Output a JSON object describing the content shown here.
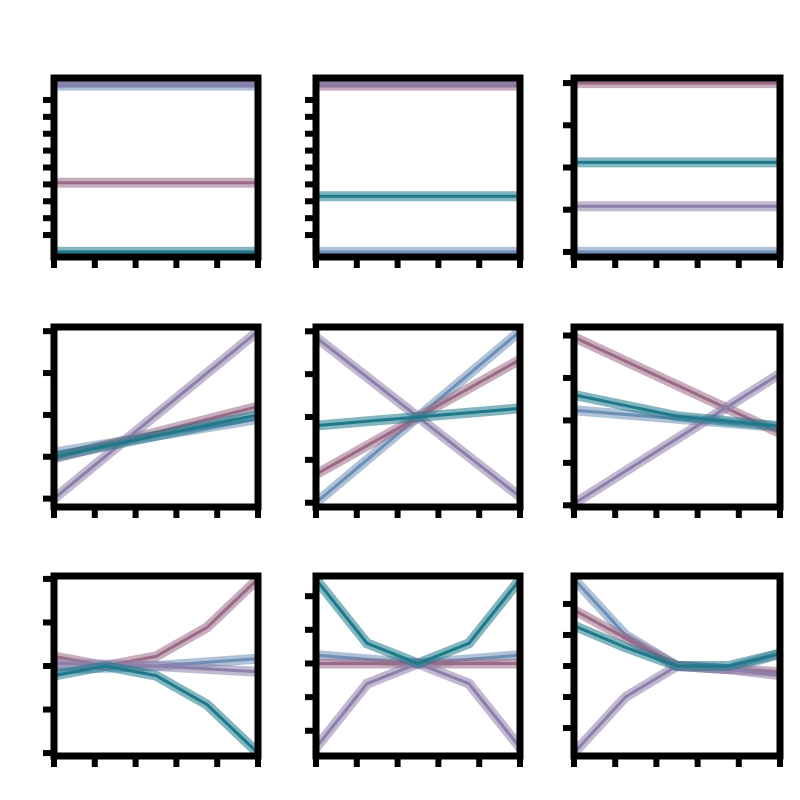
{
  "figure": {
    "suptitle": ""
  },
  "chart_data": [
    {
      "type": "line",
      "panel": "r0c0",
      "title": "",
      "series": [
        {
          "color": "#6D8FB6",
          "x": [
            0,
            1
          ],
          "y": [
            0.985,
            0.985
          ]
        },
        {
          "color": "#9A6A86",
          "x": [
            0,
            1
          ],
          "y": [
            0.41,
            0.41
          ]
        },
        {
          "color": "#8D7FAA",
          "x": [
            0,
            1
          ],
          "y": [
            1.0,
            1.0
          ]
        },
        {
          "color": "#1E7A8A",
          "x": [
            0,
            1
          ],
          "y": [
            0.0,
            0.0
          ]
        }
      ],
      "xlim": [
        0,
        1
      ],
      "ylim": [
        -0.03,
        1.03
      ],
      "xticks": [
        0,
        0.2,
        0.4,
        0.6,
        0.8,
        1.0
      ],
      "yticks": [
        0.1,
        0.2,
        0.3,
        0.4,
        0.5,
        0.6,
        0.7,
        0.8,
        0.9
      ],
      "grid": false
    },
    {
      "type": "line",
      "panel": "r0c1",
      "title": "",
      "series": [
        {
          "color": "#6D8FB6",
          "x": [
            0,
            1
          ],
          "y": [
            0.0,
            0.0
          ]
        },
        {
          "color": "#9A6A86",
          "x": [
            0,
            1
          ],
          "y": [
            0.985,
            0.985
          ]
        },
        {
          "color": "#8D7FAA",
          "x": [
            0,
            1
          ],
          "y": [
            1.0,
            1.0
          ]
        },
        {
          "color": "#1E7A8A",
          "x": [
            0,
            1
          ],
          "y": [
            0.33,
            0.33
          ]
        }
      ],
      "xlim": [
        0,
        1
      ],
      "ylim": [
        -0.03,
        1.03
      ],
      "xticks": [
        0,
        0.2,
        0.4,
        0.6,
        0.8,
        1.0
      ],
      "yticks": [
        0.1,
        0.2,
        0.3,
        0.4,
        0.5,
        0.6,
        0.7,
        0.8,
        0.9
      ],
      "grid": false
    },
    {
      "type": "line",
      "panel": "r0c2",
      "title": "",
      "series": [
        {
          "color": "#6D8FB6",
          "x": [
            0,
            1
          ],
          "y": [
            0.0,
            0.0
          ]
        },
        {
          "color": "#9A6A86",
          "x": [
            0,
            1
          ],
          "y": [
            1.0,
            1.0
          ]
        },
        {
          "color": "#8D7FAA",
          "x": [
            0,
            1
          ],
          "y": [
            0.27,
            0.27
          ]
        },
        {
          "color": "#1E7A8A",
          "x": [
            0,
            1
          ],
          "y": [
            0.53,
            0.53
          ]
        }
      ],
      "xlim": [
        0,
        1
      ],
      "ylim": [
        -0.03,
        1.03
      ],
      "xticks": [
        0,
        0.2,
        0.4,
        0.6,
        0.8,
        1.0
      ],
      "yticks": [
        0,
        0.25,
        0.5,
        0.75,
        1.0
      ],
      "grid": false
    },
    {
      "type": "line",
      "panel": "r1c0",
      "title": "",
      "series": [
        {
          "color": "#6D8FB6",
          "x": [
            0,
            1
          ],
          "y": [
            0.55,
            0.95
          ]
        },
        {
          "color": "#9A6A86",
          "x": [
            0,
            1
          ],
          "y": [
            0.48,
            1.1
          ]
        },
        {
          "color": "#8D7FAA",
          "x": [
            0,
            1
          ],
          "y": [
            0.0,
            2.0
          ]
        },
        {
          "color": "#1E7A8A",
          "x": [
            0,
            0.5,
            1
          ],
          "y": [
            0.5,
            0.75,
            1.0
          ]
        }
      ],
      "xlim": [
        0,
        1
      ],
      "ylim": [
        -0.1,
        2.05
      ],
      "xticks": [
        0,
        0.2,
        0.4,
        0.6,
        0.8,
        1.0
      ],
      "yticks": [
        0,
        0.5,
        1.0,
        1.5,
        2.0
      ],
      "grid": false
    },
    {
      "type": "line",
      "panel": "r1c1",
      "title": "",
      "series": [
        {
          "color": "#6D8FB6",
          "x": [
            0,
            1
          ],
          "y": [
            -1.0,
            1.0
          ]
        },
        {
          "color": "#9A6A86",
          "x": [
            0,
            1
          ],
          "y": [
            -0.67,
            0.67
          ]
        },
        {
          "color": "#8D7FAA",
          "x": [
            0,
            1
          ],
          "y": [
            0.93,
            -0.93
          ]
        },
        {
          "color": "#1E7A8A",
          "x": [
            0,
            0.5,
            1
          ],
          "y": [
            -0.1,
            0.0,
            0.1
          ]
        }
      ],
      "xlim": [
        0,
        1
      ],
      "ylim": [
        -1.05,
        1.05
      ],
      "xticks": [
        0,
        0.2,
        0.4,
        0.6,
        0.8,
        1.0
      ],
      "yticks": [
        -1.0,
        -0.5,
        0,
        0.5,
        1.0
      ],
      "grid": false
    },
    {
      "type": "line",
      "panel": "r1c2",
      "title": "",
      "series": [
        {
          "color": "#6D8FB6",
          "x": [
            0,
            1
          ],
          "y": [
            0.12,
            -0.08
          ]
        },
        {
          "color": "#9A6A86",
          "x": [
            0,
            1
          ],
          "y": [
            0.98,
            -0.15
          ]
        },
        {
          "color": "#8D7FAA",
          "x": [
            0,
            1
          ],
          "y": [
            -0.98,
            0.55
          ]
        },
        {
          "color": "#1E7A8A",
          "x": [
            0,
            0.5,
            1
          ],
          "y": [
            0.3,
            0.05,
            -0.07
          ]
        }
      ],
      "xlim": [
        0,
        1
      ],
      "ylim": [
        -1.02,
        1.1
      ],
      "xticks": [
        0,
        0.2,
        0.4,
        0.6,
        0.8,
        1.0
      ],
      "yticks": [
        -1.0,
        -0.5,
        0,
        0.5,
        1.0
      ],
      "grid": false
    },
    {
      "type": "line",
      "panel": "r2c0",
      "title": "",
      "series": [
        {
          "color": "#6D8FB6",
          "x": [
            0,
            0.5,
            1
          ],
          "y": [
            -0.12,
            0.0,
            0.25
          ]
        },
        {
          "color": "#9A6A86",
          "x": [
            0,
            0.25,
            0.5,
            0.75,
            1
          ],
          "y": [
            0.33,
            0.0,
            0.33,
            1.33,
            3.0
          ]
        },
        {
          "color": "#8D7FAA",
          "x": [
            0,
            0.5,
            1
          ],
          "y": [
            0.1,
            0.0,
            -0.2
          ]
        },
        {
          "color": "#1E7A8A",
          "x": [
            0,
            0.25,
            0.5,
            0.75,
            1
          ],
          "y": [
            -0.33,
            0.0,
            -0.33,
            -1.33,
            -3.0
          ]
        }
      ],
      "xlim": [
        0,
        1
      ],
      "ylim": [
        -3.1,
        3.1
      ],
      "xticks": [
        0,
        0.2,
        0.4,
        0.6,
        0.8,
        1.0
      ],
      "yticks": [
        -3,
        -1.5,
        0,
        1.5,
        3
      ],
      "grid": false
    },
    {
      "type": "line",
      "panel": "r2c1",
      "title": "",
      "series": [
        {
          "color": "#6D8FB6",
          "x": [
            0,
            0.5,
            1
          ],
          "y": [
            0.05,
            0.0,
            0.05
          ]
        },
        {
          "color": "#9A6A86",
          "x": [
            0,
            1
          ],
          "y": [
            0.0,
            0.0
          ]
        },
        {
          "color": "#8D7FAA",
          "x": [
            0,
            0.25,
            0.5,
            0.75,
            1
          ],
          "y": [
            -0.5,
            -0.12,
            0.0,
            -0.12,
            -0.5
          ]
        },
        {
          "color": "#1E7A8A",
          "x": [
            0,
            0.25,
            0.5,
            0.75,
            1
          ],
          "y": [
            0.5,
            0.12,
            0.0,
            0.12,
            0.5
          ]
        }
      ],
      "xlim": [
        0,
        1
      ],
      "ylim": [
        -0.55,
        0.52
      ],
      "xticks": [
        0,
        0.2,
        0.4,
        0.6,
        0.8,
        1.0
      ],
      "yticks": [
        -0.4,
        -0.2,
        0,
        0.2,
        0.4
      ],
      "grid": false
    },
    {
      "type": "line",
      "panel": "r2c2",
      "title": "",
      "series": [
        {
          "color": "#6D8FB6",
          "x": [
            0,
            0.25,
            0.5,
            0.75,
            1
          ],
          "y": [
            1.4,
            0.5,
            0.0,
            -0.05,
            0.2
          ]
        },
        {
          "color": "#9A6A86",
          "x": [
            0,
            0.5,
            1
          ],
          "y": [
            0.9,
            0.0,
            -0.1
          ]
        },
        {
          "color": "#8D7FAA",
          "x": [
            0,
            0.25,
            0.5,
            0.75,
            1
          ],
          "y": [
            -1.4,
            -0.5,
            0.0,
            -0.05,
            -0.15
          ]
        },
        {
          "color": "#1E7A8A",
          "x": [
            0,
            0.25,
            0.5,
            0.75,
            1
          ],
          "y": [
            0.65,
            0.3,
            0.0,
            0.0,
            0.2
          ]
        }
      ],
      "xlim": [
        0,
        1
      ],
      "ylim": [
        -1.45,
        1.45
      ],
      "xticks": [
        0,
        0.2,
        0.4,
        0.6,
        0.8,
        1.0
      ],
      "yticks": [
        -1.0,
        -0.5,
        0,
        0.5,
        1.0
      ],
      "grid": false
    }
  ]
}
